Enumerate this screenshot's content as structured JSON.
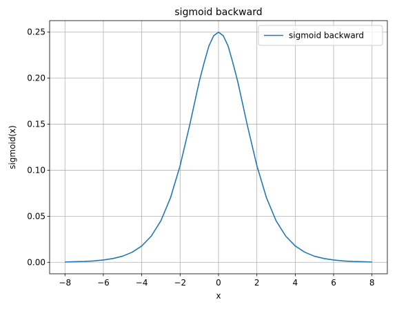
{
  "chart_data": {
    "type": "line",
    "title": "sigmoid backward",
    "xlabel": "x",
    "ylabel": "sigmoid(x)",
    "xlim": [
      -8.8,
      8.8
    ],
    "ylim": [
      -0.0125,
      0.2625
    ],
    "xticks": [
      -8,
      -6,
      -4,
      -2,
      0,
      2,
      4,
      6,
      8
    ],
    "xtick_labels": [
      "−8",
      "−6",
      "−4",
      "−2",
      "0",
      "2",
      "4",
      "6",
      "8"
    ],
    "yticks": [
      0.0,
      0.05,
      0.1,
      0.15,
      0.2,
      0.25
    ],
    "ytick_labels": [
      "0.00",
      "0.05",
      "0.10",
      "0.15",
      "0.20",
      "0.25"
    ],
    "grid": true,
    "legend": {
      "placement": "upper-right",
      "entries": [
        "sigmoid backward"
      ]
    },
    "series": [
      {
        "name": "sigmoid backward",
        "color": "#1f77b4",
        "x": [
          -8,
          -7.5,
          -7,
          -6.5,
          -6,
          -5.5,
          -5,
          -4.5,
          -4,
          -3.5,
          -3,
          -2.5,
          -2,
          -1.5,
          -1,
          -0.75,
          -0.5,
          -0.25,
          0,
          0.25,
          0.5,
          0.75,
          1,
          1.5,
          2,
          2.5,
          3,
          3.5,
          4,
          4.5,
          5,
          5.5,
          6,
          6.5,
          7,
          7.5,
          8
        ],
        "y": [
          0.0003,
          0.0006,
          0.0009,
          0.0015,
          0.0025,
          0.0041,
          0.0066,
          0.0109,
          0.0177,
          0.0285,
          0.0452,
          0.0701,
          0.105,
          0.1491,
          0.1966,
          0.2167,
          0.235,
          0.2461,
          0.25,
          0.2461,
          0.235,
          0.2167,
          0.1966,
          0.1491,
          0.105,
          0.0701,
          0.0452,
          0.0285,
          0.0177,
          0.0109,
          0.0066,
          0.0041,
          0.0025,
          0.0015,
          0.0009,
          0.0006,
          0.0003
        ]
      }
    ]
  }
}
